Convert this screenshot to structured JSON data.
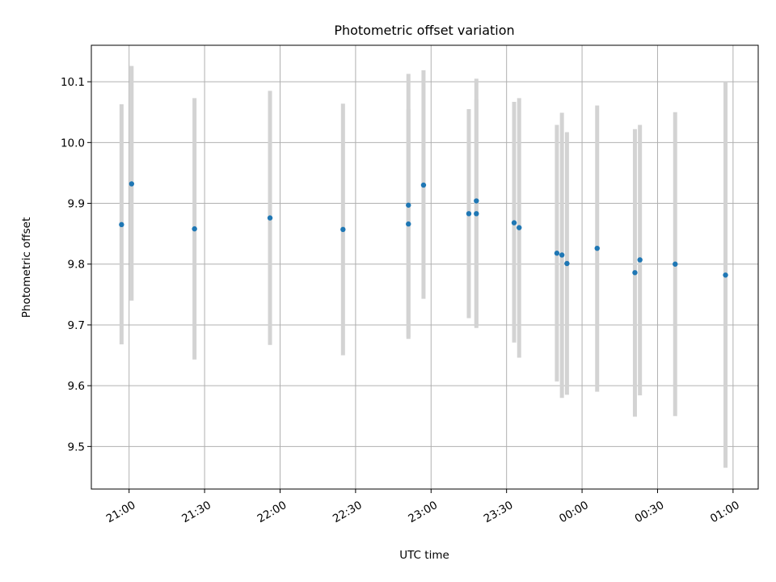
{
  "chart_data": {
    "type": "scatter",
    "title": "Photometric offset variation",
    "xlabel": "UTC time",
    "ylabel": "Photometric offset",
    "x_unit": "UTC time (HH:MM)",
    "xlim": [
      "20:45",
      "01:10"
    ],
    "ylim": [
      9.43,
      10.16
    ],
    "x_ticks": [
      "21:00",
      "21:30",
      "22:00",
      "22:30",
      "23:00",
      "23:30",
      "00:00",
      "00:30",
      "01:00"
    ],
    "y_ticks": [
      9.5,
      9.6,
      9.7,
      9.8,
      9.9,
      10.0,
      10.1
    ],
    "y_tick_labels": [
      "9.5",
      "9.6",
      "9.7",
      "9.8",
      "9.9",
      "10.0",
      "10.1"
    ],
    "grid": true,
    "marker_color": "#1f77b4",
    "errorbar_color": "#d3d3d3",
    "points": [
      {
        "t": "20:57",
        "y": 9.865,
        "lo": 9.668,
        "hi": 10.063
      },
      {
        "t": "21:01",
        "y": 9.932,
        "lo": 9.74,
        "hi": 10.126
      },
      {
        "t": "21:26",
        "y": 9.858,
        "lo": 9.643,
        "hi": 10.073
      },
      {
        "t": "21:56",
        "y": 9.876,
        "lo": 9.667,
        "hi": 10.085
      },
      {
        "t": "22:25",
        "y": 9.857,
        "lo": 9.65,
        "hi": 10.064
      },
      {
        "t": "22:51",
        "y": 9.897,
        "lo": 9.68,
        "hi": 10.113
      },
      {
        "t": "22:51",
        "y": 9.866,
        "lo": 9.677,
        "hi": 10.055
      },
      {
        "t": "22:57",
        "y": 9.93,
        "lo": 9.743,
        "hi": 10.119
      },
      {
        "t": "23:15",
        "y": 9.883,
        "lo": 9.711,
        "hi": 10.055
      },
      {
        "t": "23:18",
        "y": 9.904,
        "lo": 9.695,
        "hi": 10.105
      },
      {
        "t": "23:18",
        "y": 9.883,
        "lo": 9.698,
        "hi": 10.071
      },
      {
        "t": "23:33",
        "y": 9.868,
        "lo": 9.671,
        "hi": 10.067
      },
      {
        "t": "23:35",
        "y": 9.86,
        "lo": 9.646,
        "hi": 10.073
      },
      {
        "t": "23:50",
        "y": 9.818,
        "lo": 9.607,
        "hi": 10.029
      },
      {
        "t": "23:52",
        "y": 9.815,
        "lo": 9.58,
        "hi": 10.049
      },
      {
        "t": "23:54",
        "y": 9.801,
        "lo": 9.585,
        "hi": 10.017
      },
      {
        "t": "00:06",
        "y": 9.826,
        "lo": 9.59,
        "hi": 10.061
      },
      {
        "t": "00:21",
        "y": 9.786,
        "lo": 9.549,
        "hi": 10.022
      },
      {
        "t": "00:23",
        "y": 9.807,
        "lo": 9.584,
        "hi": 10.029
      },
      {
        "t": "00:37",
        "y": 9.8,
        "lo": 9.55,
        "hi": 10.05
      },
      {
        "t": "00:57",
        "y": 9.782,
        "lo": 9.465,
        "hi": 10.1
      }
    ]
  }
}
